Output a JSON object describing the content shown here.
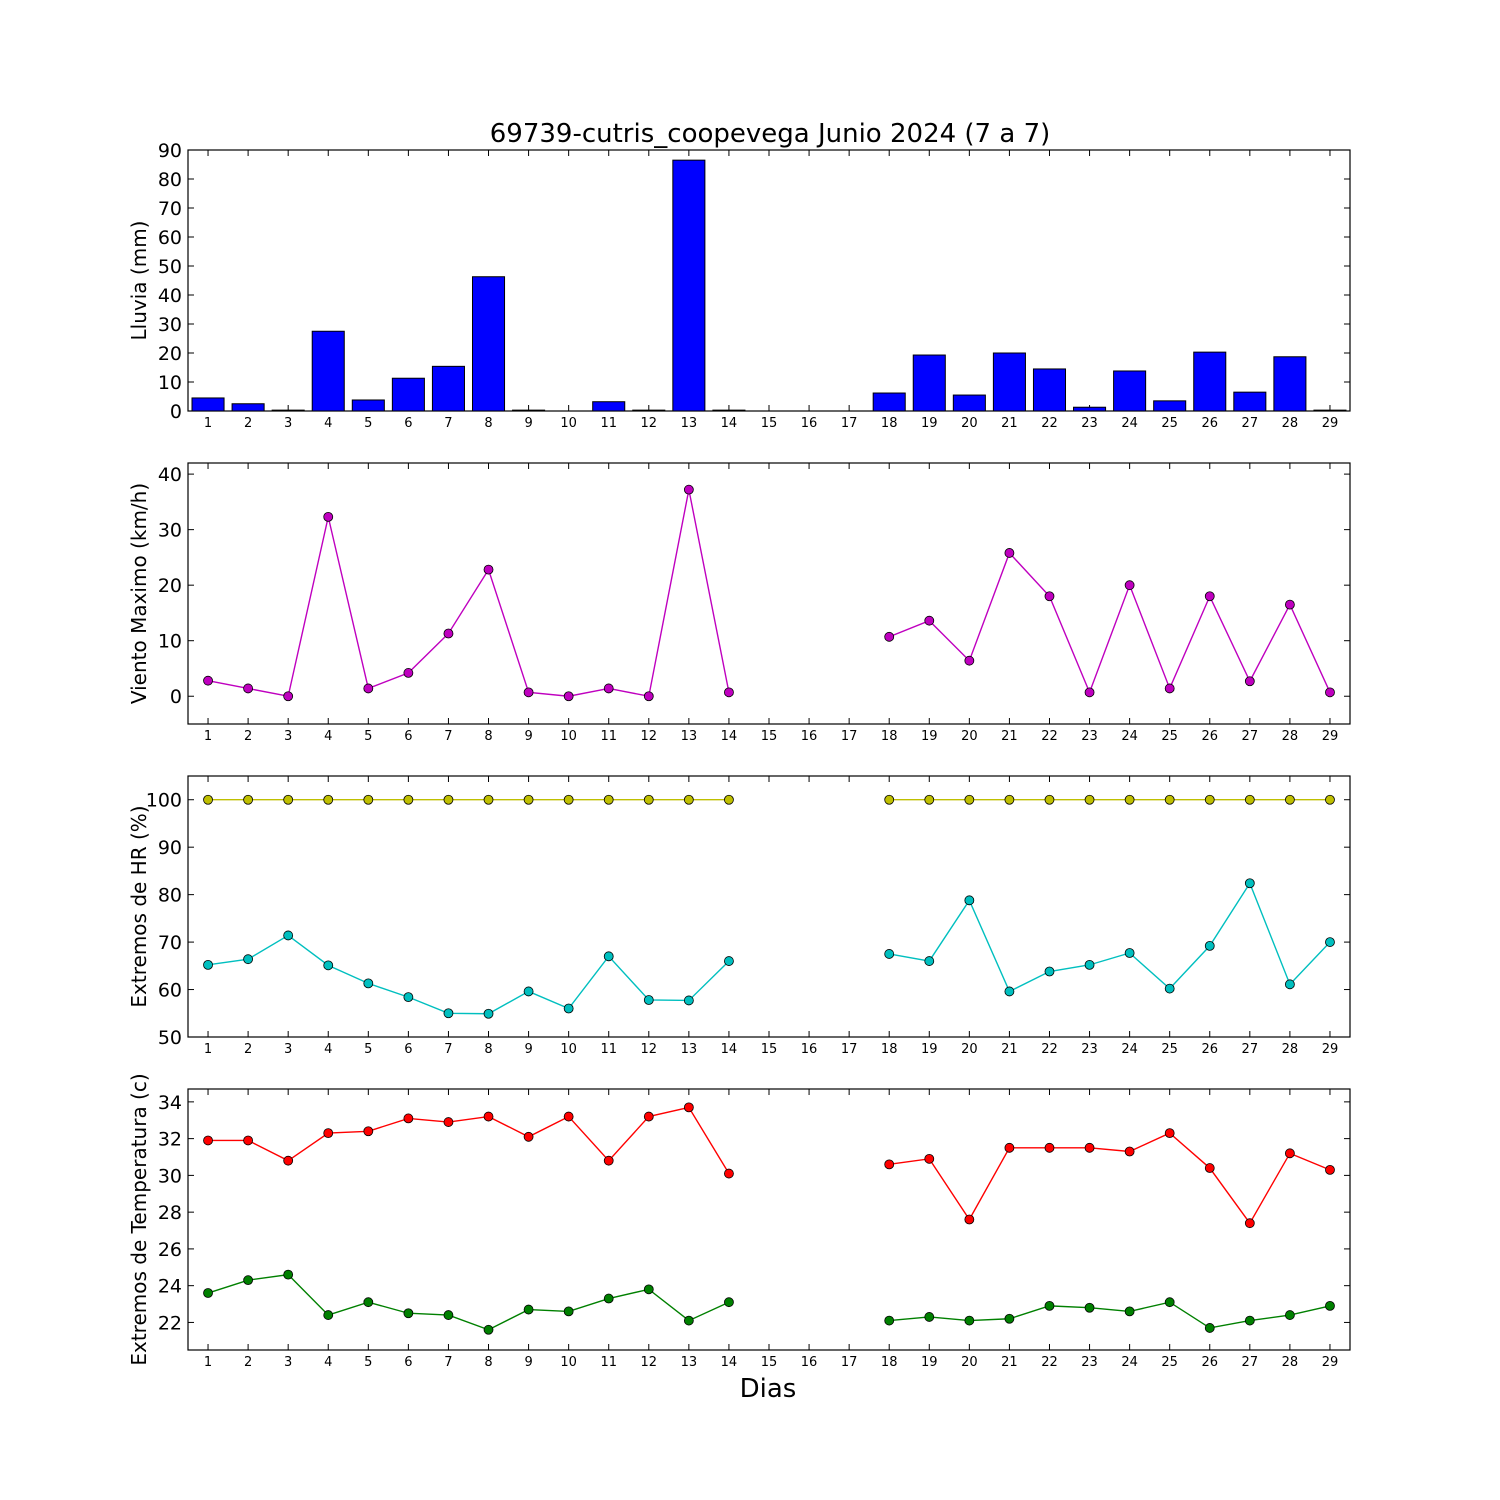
{
  "title": "69739-cutris_coopevega Junio 2024  (7 a 7)",
  "xlabel": "Dias",
  "days": [
    "1",
    "2",
    "3",
    "4",
    "5",
    "6",
    "7",
    "8",
    "9",
    "10",
    "11",
    "12",
    "13",
    "14",
    "15",
    "16",
    "17",
    "18",
    "19",
    "20",
    "21",
    "22",
    "23",
    "24",
    "25",
    "26",
    "27",
    "28",
    "29"
  ],
  "chart_data": [
    {
      "type": "bar",
      "ylabel": "Lluvia (mm)",
      "ylim": [
        0,
        90
      ],
      "yticks": [
        0,
        10,
        20,
        30,
        40,
        50,
        60,
        70,
        80,
        90
      ],
      "grid": false,
      "series": [
        {
          "color": "#0000ff",
          "values": [
            4.5,
            2.5,
            0.3,
            27.5,
            3.8,
            11.3,
            15.4,
            46.3,
            0.3,
            0.0,
            3.2,
            0.3,
            86.5,
            0.3,
            null,
            null,
            null,
            6.2,
            19.3,
            5.5,
            20.0,
            14.5,
            1.3,
            13.8,
            3.5,
            20.3,
            6.5,
            18.7,
            0.3
          ]
        }
      ]
    },
    {
      "type": "line",
      "ylabel": "Viento Maximo (km/h)",
      "ylim": [
        -5,
        42
      ],
      "yticks": [
        0,
        10,
        20,
        30,
        40
      ],
      "grid": false,
      "series": [
        {
          "color": "#bf00bf",
          "values": [
            2.8,
            1.4,
            0.0,
            32.3,
            1.4,
            4.2,
            11.3,
            22.8,
            0.7,
            0.0,
            1.4,
            0.0,
            37.2,
            0.7,
            null,
            null,
            null,
            10.7,
            13.6,
            6.4,
            25.8,
            18.0,
            0.7,
            20.0,
            1.4,
            18.0,
            2.7,
            16.5,
            0.7
          ]
        }
      ]
    },
    {
      "type": "line",
      "ylabel": "Extremos de HR (%)",
      "ylim": [
        50,
        105
      ],
      "yticks": [
        50,
        60,
        70,
        80,
        90,
        100
      ],
      "grid": false,
      "series": [
        {
          "color": "#bfbf00",
          "values": [
            100,
            100,
            100,
            100,
            100,
            100,
            100,
            100,
            100,
            100,
            100,
            100,
            100,
            100,
            null,
            null,
            null,
            100,
            100,
            100,
            100,
            100,
            100,
            100,
            100,
            100,
            100,
            100,
            100
          ]
        },
        {
          "color": "#00bfbf",
          "values": [
            65.2,
            66.4,
            71.4,
            65.1,
            61.3,
            58.4,
            55.0,
            54.9,
            59.6,
            56.0,
            67.0,
            57.8,
            57.7,
            66.0,
            null,
            null,
            null,
            67.5,
            66.0,
            78.8,
            59.6,
            63.8,
            65.2,
            67.7,
            60.2,
            69.2,
            82.4,
            61.1,
            70.0
          ]
        }
      ]
    },
    {
      "type": "line",
      "ylabel": "Extremos de Temperatura (c)",
      "ylim": [
        20.5,
        34.7
      ],
      "yticks": [
        22,
        24,
        26,
        28,
        30,
        32,
        34
      ],
      "grid": false,
      "series": [
        {
          "color": "#ff0000",
          "values": [
            31.9,
            31.9,
            30.8,
            32.3,
            32.4,
            33.1,
            32.9,
            33.2,
            32.1,
            33.2,
            30.8,
            33.2,
            33.7,
            30.1,
            null,
            null,
            null,
            30.6,
            30.9,
            27.6,
            31.5,
            31.5,
            31.5,
            31.3,
            32.3,
            30.4,
            27.4,
            31.2,
            30.3
          ]
        },
        {
          "color": "#008000",
          "values": [
            23.6,
            24.3,
            24.6,
            22.4,
            23.1,
            22.5,
            22.4,
            21.6,
            22.7,
            22.6,
            23.3,
            23.8,
            22.1,
            23.1,
            null,
            null,
            null,
            22.1,
            22.3,
            22.1,
            22.2,
            22.9,
            22.8,
            22.6,
            23.1,
            21.7,
            22.1,
            22.4,
            22.9
          ]
        }
      ]
    }
  ]
}
